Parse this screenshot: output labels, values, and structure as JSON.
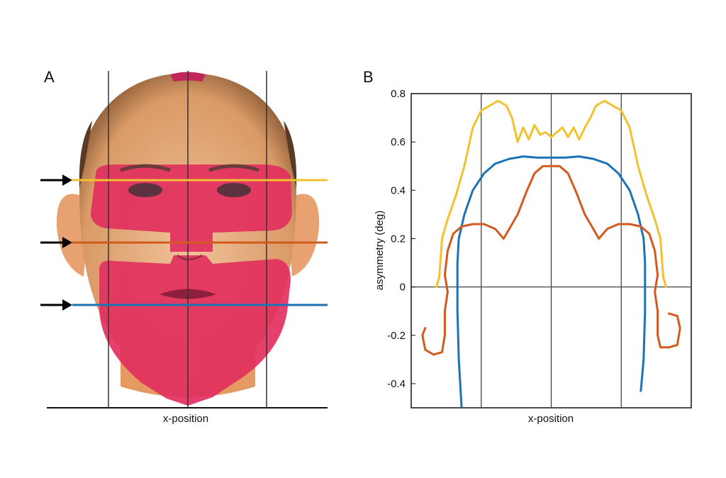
{
  "panel_a": {
    "label": "A",
    "xlabel": "x-position",
    "profile_line_colors": [
      "#f2c12e",
      "#d25a1e",
      "#1a73b5"
    ]
  },
  "panel_b": {
    "label": "B",
    "xlabel": "x-position",
    "ylabel": "asymmetry (deg)"
  },
  "chart_data": {
    "type": "line",
    "xlabel": "x-position",
    "ylabel": "asymmetry (deg)",
    "ylim": [
      -0.5,
      0.8
    ],
    "yticks": [
      -0.4,
      -0.2,
      0,
      0.2,
      0.4,
      0.6,
      0.8
    ],
    "ytick_labels": [
      "-0.4",
      "-0.2",
      "0",
      "0.2",
      "0.4",
      "0.6",
      "0.8"
    ],
    "xlim": [
      0,
      1
    ],
    "xgrid": [
      0.25,
      0.5,
      0.75
    ],
    "grid": "vertical lines at x-grid positions, horizontal line at 0",
    "series": [
      {
        "color": "#f2c12e",
        "points": [
          [
            0.09,
            0.0
          ],
          [
            0.1,
            0.04
          ],
          [
            0.11,
            0.2
          ],
          [
            0.13,
            0.28
          ],
          [
            0.16,
            0.38
          ],
          [
            0.19,
            0.5
          ],
          [
            0.22,
            0.66
          ],
          [
            0.25,
            0.73
          ],
          [
            0.28,
            0.75
          ],
          [
            0.31,
            0.77
          ],
          [
            0.34,
            0.75
          ],
          [
            0.36,
            0.7
          ],
          [
            0.38,
            0.6
          ],
          [
            0.4,
            0.66
          ],
          [
            0.42,
            0.61
          ],
          [
            0.44,
            0.67
          ],
          [
            0.46,
            0.63
          ],
          [
            0.48,
            0.64
          ],
          [
            0.5,
            0.62
          ],
          [
            0.52,
            0.64
          ],
          [
            0.54,
            0.66
          ],
          [
            0.56,
            0.62
          ],
          [
            0.58,
            0.66
          ],
          [
            0.6,
            0.61
          ],
          [
            0.62,
            0.66
          ],
          [
            0.64,
            0.7
          ],
          [
            0.66,
            0.75
          ],
          [
            0.69,
            0.77
          ],
          [
            0.72,
            0.75
          ],
          [
            0.75,
            0.73
          ],
          [
            0.78,
            0.66
          ],
          [
            0.81,
            0.5
          ],
          [
            0.84,
            0.38
          ],
          [
            0.87,
            0.28
          ],
          [
            0.89,
            0.2
          ],
          [
            0.9,
            0.04
          ],
          [
            0.91,
            0.0
          ]
        ]
      },
      {
        "color": "#1a73b5",
        "points": [
          [
            0.18,
            -0.5
          ],
          [
            0.17,
            -0.3
          ],
          [
            0.165,
            -0.1
          ],
          [
            0.165,
            0.1
          ],
          [
            0.17,
            0.2
          ],
          [
            0.19,
            0.3
          ],
          [
            0.22,
            0.4
          ],
          [
            0.26,
            0.47
          ],
          [
            0.3,
            0.51
          ],
          [
            0.35,
            0.53
          ],
          [
            0.4,
            0.54
          ],
          [
            0.45,
            0.535
          ],
          [
            0.5,
            0.535
          ],
          [
            0.55,
            0.535
          ],
          [
            0.6,
            0.54
          ],
          [
            0.65,
            0.53
          ],
          [
            0.7,
            0.51
          ],
          [
            0.74,
            0.47
          ],
          [
            0.78,
            0.4
          ],
          [
            0.81,
            0.3
          ],
          [
            0.83,
            0.2
          ],
          [
            0.835,
            0.1
          ],
          [
            0.835,
            -0.1
          ],
          [
            0.83,
            -0.3
          ],
          [
            0.82,
            -0.43
          ]
        ]
      },
      {
        "color": "#d25a1e",
        "points": [
          [
            0.05,
            -0.17
          ],
          [
            0.04,
            -0.2
          ],
          [
            0.05,
            -0.26
          ],
          [
            0.08,
            -0.28
          ],
          [
            0.11,
            -0.27
          ],
          [
            0.12,
            -0.2
          ],
          [
            0.12,
            -0.1
          ],
          [
            0.13,
            -0.02
          ],
          [
            0.12,
            0.05
          ],
          [
            0.13,
            0.15
          ],
          [
            0.15,
            0.22
          ],
          [
            0.18,
            0.25
          ],
          [
            0.22,
            0.26
          ],
          [
            0.26,
            0.26
          ],
          [
            0.3,
            0.24
          ],
          [
            0.33,
            0.2
          ],
          [
            0.35,
            0.24
          ],
          [
            0.38,
            0.3
          ],
          [
            0.41,
            0.39
          ],
          [
            0.44,
            0.47
          ],
          [
            0.47,
            0.5
          ],
          [
            0.5,
            0.5
          ],
          [
            0.53,
            0.5
          ],
          [
            0.56,
            0.47
          ],
          [
            0.59,
            0.39
          ],
          [
            0.62,
            0.3
          ],
          [
            0.65,
            0.24
          ],
          [
            0.67,
            0.2
          ],
          [
            0.7,
            0.24
          ],
          [
            0.74,
            0.26
          ],
          [
            0.78,
            0.26
          ],
          [
            0.82,
            0.25
          ],
          [
            0.85,
            0.22
          ],
          [
            0.87,
            0.15
          ],
          [
            0.88,
            0.05
          ],
          [
            0.87,
            -0.02
          ],
          [
            0.88,
            -0.1
          ],
          [
            0.88,
            -0.2
          ],
          [
            0.89,
            -0.25
          ],
          [
            0.92,
            -0.25
          ],
          [
            0.95,
            -0.24
          ],
          [
            0.96,
            -0.17
          ],
          [
            0.95,
            -0.12
          ],
          [
            0.92,
            -0.11
          ]
        ]
      }
    ]
  }
}
